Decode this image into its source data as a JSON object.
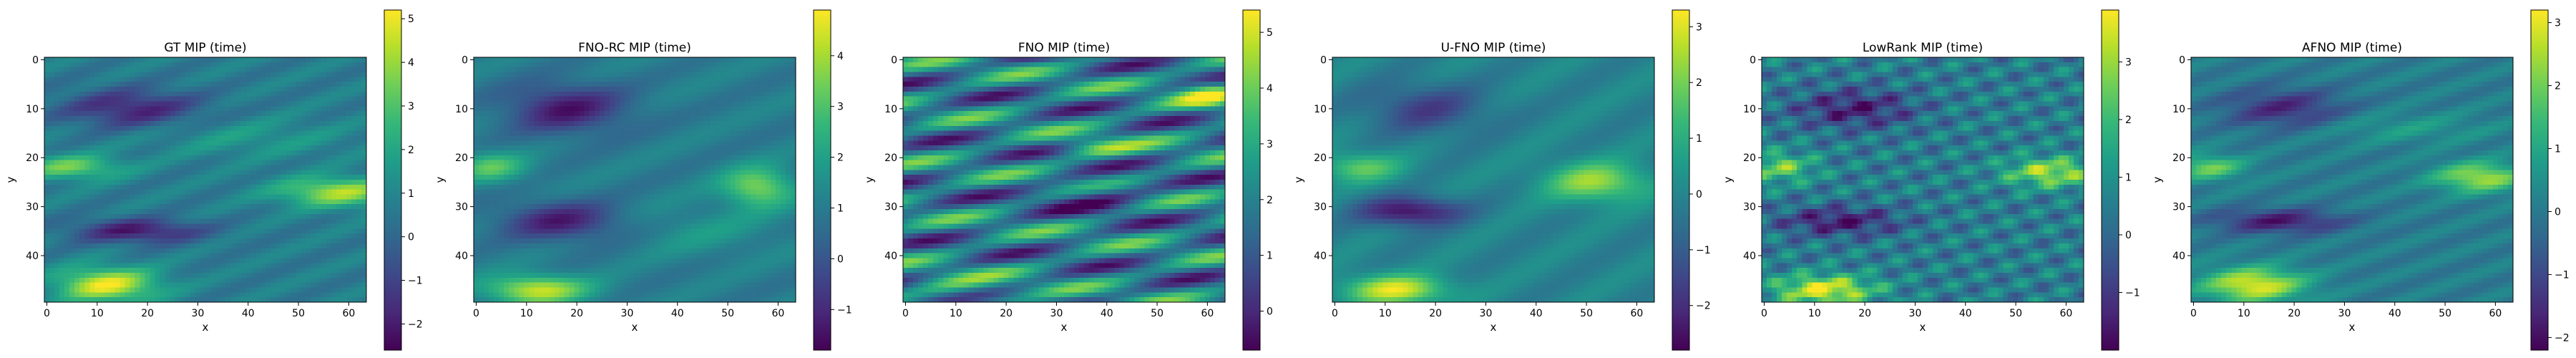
{
  "figure": {
    "panels": [
      {
        "title": "GT MIP (time)"
      },
      {
        "title": "FNO-RC MIP (time)"
      },
      {
        "title": "FNO MIP (time)"
      },
      {
        "title": "U-FNO MIP (time)"
      },
      {
        "title": "LowRank MIP (time)"
      },
      {
        "title": "AFNO MIP (time)"
      }
    ]
  },
  "chart_data": [
    {
      "type": "heatmap",
      "title": "GT MIP (time)",
      "xlabel": "x",
      "ylabel": "y",
      "xticks": [
        0,
        10,
        20,
        30,
        40,
        50,
        60
      ],
      "yticks": [
        0,
        10,
        20,
        30,
        40
      ],
      "xlim": [
        0,
        63
      ],
      "ylim": [
        49,
        0
      ],
      "colormap": "viridis",
      "colorbar": {
        "min": -2.6,
        "max": 5.2,
        "ticks": [
          -2,
          -1,
          0,
          1,
          2,
          3,
          4,
          5
        ]
      },
      "value_range": [
        -2.6,
        5.2
      ]
    },
    {
      "type": "heatmap",
      "title": "FNO-RC MIP (time)",
      "xlabel": "x",
      "ylabel": "y",
      "xticks": [
        0,
        10,
        20,
        30,
        40,
        50,
        60
      ],
      "yticks": [
        0,
        10,
        20,
        30,
        40
      ],
      "xlim": [
        0,
        63
      ],
      "ylim": [
        49,
        0
      ],
      "colormap": "viridis",
      "colorbar": {
        "min": -1.8,
        "max": 4.9,
        "ticks": [
          -1,
          0,
          1,
          2,
          3,
          4
        ]
      },
      "value_range": [
        -1.8,
        4.9
      ]
    },
    {
      "type": "heatmap",
      "title": "FNO MIP (time)",
      "xlabel": "x",
      "ylabel": "y",
      "xticks": [
        0,
        10,
        20,
        30,
        40,
        50,
        60
      ],
      "yticks": [
        0,
        10,
        20,
        30,
        40
      ],
      "xlim": [
        0,
        63
      ],
      "ylim": [
        49,
        0
      ],
      "colormap": "viridis",
      "colorbar": {
        "min": -0.7,
        "max": 5.4,
        "ticks": [
          0,
          1,
          2,
          3,
          4,
          5
        ]
      },
      "value_range": [
        -0.7,
        5.4
      ]
    },
    {
      "type": "heatmap",
      "title": "U-FNO MIP (time)",
      "xlabel": "x",
      "ylabel": "y",
      "xticks": [
        0,
        10,
        20,
        30,
        40,
        50,
        60
      ],
      "yticks": [
        0,
        10,
        20,
        30,
        40
      ],
      "xlim": [
        0,
        63
      ],
      "ylim": [
        49,
        0
      ],
      "colormap": "viridis",
      "colorbar": {
        "min": -2.8,
        "max": 3.3,
        "ticks": [
          -2,
          -1,
          0,
          1,
          2,
          3
        ]
      },
      "value_range": [
        -2.8,
        3.3
      ]
    },
    {
      "type": "heatmap",
      "title": "LowRank MIP (time)",
      "xlabel": "x",
      "ylabel": "y",
      "xticks": [
        0,
        10,
        20,
        30,
        40,
        50,
        60
      ],
      "yticks": [
        0,
        10,
        20,
        30,
        40
      ],
      "xlim": [
        0,
        63
      ],
      "ylim": [
        49,
        0
      ],
      "colormap": "viridis",
      "colorbar": {
        "min": -2.0,
        "max": 3.9,
        "ticks": [
          -1,
          0,
          1,
          2,
          3
        ]
      },
      "value_range": [
        -2.0,
        3.9
      ]
    },
    {
      "type": "heatmap",
      "title": "AFNO MIP (time)",
      "xlabel": "x",
      "ylabel": "y",
      "xticks": [
        0,
        10,
        20,
        30,
        40,
        50,
        60
      ],
      "yticks": [
        0,
        10,
        20,
        30,
        40
      ],
      "xlim": [
        0,
        63
      ],
      "ylim": [
        49,
        0
      ],
      "colormap": "viridis",
      "colorbar": {
        "min": -2.2,
        "max": 3.2,
        "ticks": [
          -2,
          -1,
          0,
          1,
          2,
          3
        ]
      },
      "value_range": [
        -2.2,
        3.2
      ]
    }
  ]
}
